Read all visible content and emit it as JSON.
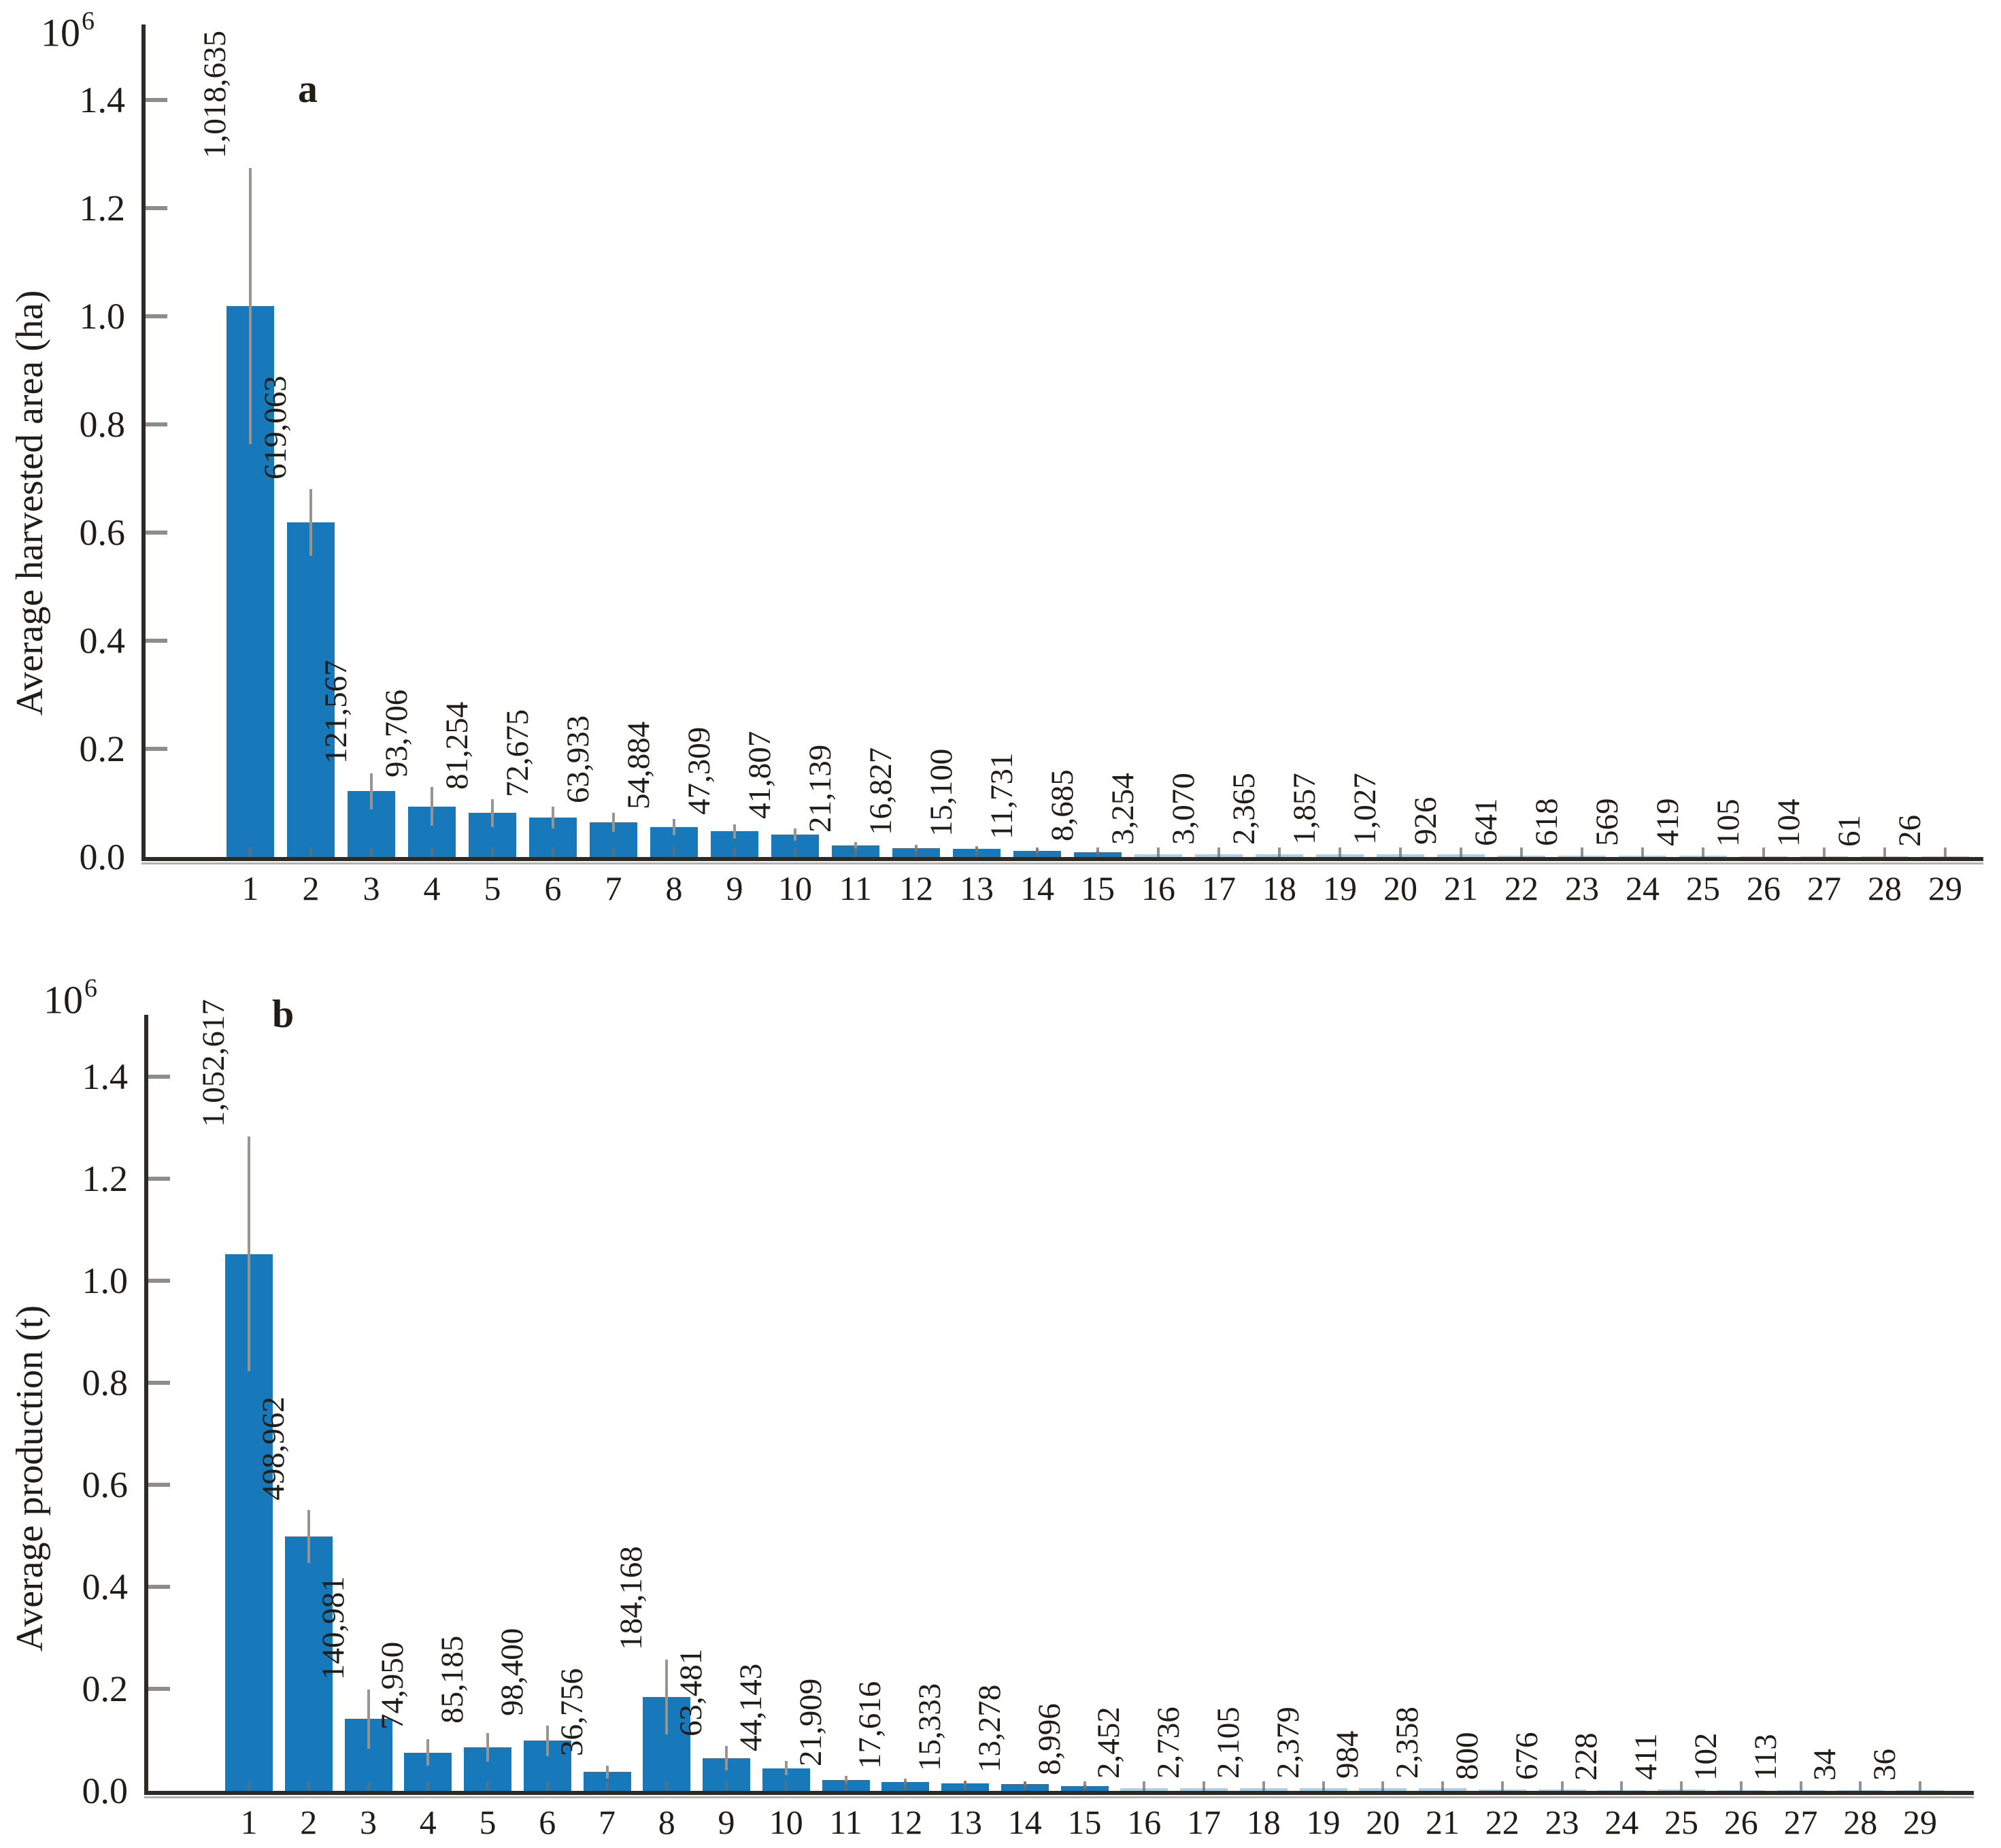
{
  "page": {
    "background": "#ffffff"
  },
  "colors": {
    "bar": "#1779ba",
    "bar_light": "#a9cfe9",
    "axis": "#2e2b27",
    "axis_shadow": "#b3b1ad",
    "y_tick": "#8d8d8d",
    "x_tick": "#6e6e6e",
    "whisker": "#999490",
    "text": "#211c15"
  },
  "chart_data": [
    {
      "id": "a",
      "type": "bar",
      "panel_label": "a",
      "ylabel": "Average harvested area (ha)",
      "y_scale_base": "10",
      "y_scale_exponent": "6",
      "grid": false,
      "legend": null,
      "ylim": [
        0,
        1500000
      ],
      "y_ticks": [
        "0.0",
        "0.2",
        "0.4",
        "0.6",
        "0.8",
        "1.0",
        "1.2",
        "1.4"
      ],
      "x_categories": [
        1,
        2,
        3,
        4,
        5,
        6,
        7,
        8,
        9,
        10,
        11,
        12,
        13,
        14,
        15,
        16,
        17,
        18,
        19,
        20,
        21,
        22,
        23,
        24,
        25,
        26,
        27,
        28,
        29
      ],
      "values": [
        1018635,
        619063,
        121567,
        93706,
        81254,
        72675,
        63933,
        54884,
        47309,
        41807,
        21139,
        16827,
        15100,
        11731,
        8685,
        3254,
        3070,
        2365,
        1857,
        1027,
        926,
        641,
        618,
        569,
        419,
        105,
        104,
        61,
        26
      ],
      "value_labels": [
        "1,018,635",
        "619,063",
        "121,567",
        "93,706",
        "81,254",
        "72,675",
        "63,933",
        "54,884",
        "47,309",
        "41,807",
        "21,139",
        "16,827",
        "15,100",
        "11,731",
        "8,685",
        "3,254",
        "3,070",
        "2,365",
        "1,857",
        "1,027",
        "926",
        "641",
        "618",
        "569",
        "419",
        "105",
        "104",
        "61",
        "26"
      ],
      "errors_estimated": [
        255000,
        62000,
        33000,
        36000,
        26000,
        20000,
        18000,
        15000,
        13000,
        11000,
        7000,
        5500,
        5000,
        3900,
        2900,
        1500,
        1400,
        1100,
        900,
        500,
        450,
        300,
        300,
        280,
        200,
        60,
        60,
        30,
        15
      ]
    },
    {
      "id": "b",
      "type": "bar",
      "panel_label": "b",
      "ylabel": "Average production (t)",
      "y_scale_base": "10",
      "y_scale_exponent": "6",
      "grid": false,
      "legend": null,
      "ylim": [
        0,
        1500000
      ],
      "y_ticks": [
        "0.0",
        "0.2",
        "0.4",
        "0.6",
        "0.8",
        "1.0",
        "1.2",
        "1.4"
      ],
      "x_categories": [
        1,
        2,
        3,
        4,
        5,
        6,
        7,
        8,
        9,
        10,
        11,
        12,
        13,
        14,
        15,
        16,
        17,
        18,
        19,
        20,
        21,
        22,
        23,
        24,
        25,
        26,
        27,
        28,
        29
      ],
      "values": [
        1052617,
        498962,
        140981,
        74950,
        85185,
        98400,
        36756,
        184168,
        63481,
        44143,
        21909,
        17616,
        15333,
        13278,
        8996,
        2452,
        2736,
        2105,
        2379,
        984,
        2358,
        800,
        676,
        228,
        411,
        102,
        113,
        34,
        36
      ],
      "value_labels": [
        "1,052,617",
        "498,962",
        "140,981",
        "74,950",
        "85,185",
        "98,400",
        "36,756",
        "184,168",
        "63,481",
        "44,143",
        "21,909",
        "17,616",
        "15,333",
        "13,278",
        "8,996",
        "2,452",
        "2,736",
        "2,105",
        "2,379",
        "984",
        "2,358",
        "800",
        "676",
        "228",
        "411",
        "102",
        "113",
        "34",
        "36"
      ],
      "errors_estimated": [
        230000,
        52000,
        58000,
        26000,
        28000,
        30000,
        13000,
        73000,
        24000,
        14000,
        8000,
        6000,
        5000,
        4500,
        3000,
        1200,
        1300,
        1000,
        1100,
        500,
        1100,
        400,
        330,
        110,
        200,
        50,
        55,
        17,
        18
      ]
    }
  ]
}
